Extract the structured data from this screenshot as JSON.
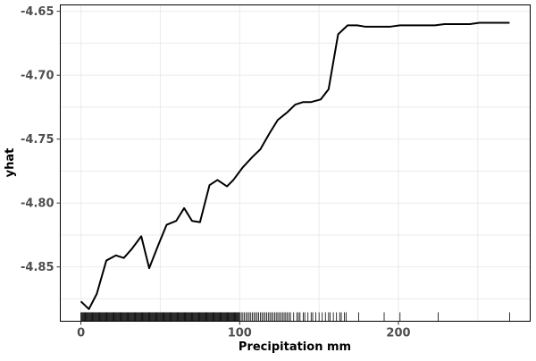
{
  "chart_data": {
    "type": "line",
    "title": "",
    "xlabel": "Precipitation mm",
    "ylabel": "yhat",
    "xlim": [
      -13,
      283
    ],
    "ylim": [
      -4.8925,
      -4.645
    ],
    "xticks": [
      0,
      100,
      200
    ],
    "yticks": [
      -4.65,
      -4.7,
      -4.75,
      -4.8,
      -4.85
    ],
    "xtick_labels": [
      "0",
      "100",
      "200"
    ],
    "ytick_labels": [
      "-4.65",
      "-4.70",
      "-4.75",
      "-4.80",
      "-4.85"
    ],
    "grid": true,
    "legend": "none",
    "series": [
      {
        "x": [
          0,
          5,
          10,
          16,
          22,
          27,
          32,
          38,
          43,
          49,
          54,
          60,
          65,
          70,
          75,
          81,
          86,
          92,
          96,
          102,
          108,
          113,
          119,
          124,
          130,
          135,
          140,
          145,
          151,
          156,
          162,
          168,
          174,
          179,
          184,
          190,
          195,
          201,
          206,
          212,
          218,
          223,
          229,
          234,
          240,
          245,
          251,
          256,
          262,
          270
        ],
        "y": [
          -4.877,
          -4.883,
          -4.871,
          -4.845,
          -4.841,
          -4.843,
          -4.836,
          -4.826,
          -4.851,
          -4.832,
          -4.817,
          -4.814,
          -4.804,
          -4.814,
          -4.815,
          -4.786,
          -4.782,
          -4.787,
          -4.782,
          -4.772,
          -4.764,
          -4.758,
          -4.745,
          -4.735,
          -4.729,
          -4.723,
          -4.721,
          -4.721,
          -4.719,
          -4.711,
          -4.668,
          -4.661,
          -4.661,
          -4.662,
          -4.662,
          -4.662,
          -4.662,
          -4.661,
          -4.661,
          -4.661,
          -4.661,
          -4.661,
          -4.66,
          -4.66,
          -4.66,
          -4.66,
          -4.659,
          -4.659,
          -4.659,
          -4.659
        ]
      }
    ],
    "rug": [
      0,
      0.5,
      1,
      1.5,
      2,
      2.5,
      3,
      3.5,
      4,
      4.5,
      5,
      5.5,
      6,
      6.5,
      7,
      7.5,
      8,
      8.5,
      9,
      9.5,
      10,
      10.5,
      11,
      11.5,
      12,
      12.5,
      13,
      13.5,
      14,
      14.5,
      15,
      15.5,
      16,
      16.5,
      17,
      17.5,
      18,
      18.5,
      19,
      19.5,
      20,
      20.5,
      21,
      21.5,
      22,
      22.5,
      23,
      23.5,
      24,
      24.5,
      25,
      25.5,
      26,
      26.5,
      27,
      27.5,
      28,
      28.5,
      29,
      29.5,
      30,
      30.5,
      31,
      31.5,
      32,
      32.5,
      33,
      33.5,
      34,
      34.5,
      35,
      35.5,
      36,
      36.5,
      37,
      37.5,
      38,
      38.5,
      39,
      39.5,
      40,
      40.5,
      41,
      41.5,
      42,
      42.5,
      43,
      43.5,
      44,
      44.5,
      45,
      45.5,
      46,
      46.5,
      47,
      47.5,
      48,
      48.5,
      49,
      49.5,
      50,
      50.5,
      51,
      51.5,
      52,
      52.5,
      53,
      53.5,
      54,
      54.5,
      55,
      55.5,
      56,
      56.5,
      57,
      57.5,
      58,
      58.5,
      59,
      59.5,
      60,
      60.5,
      61,
      61.5,
      62,
      62.5,
      63,
      63.5,
      64,
      64.5,
      65,
      65.5,
      66,
      66.5,
      67,
      67.5,
      68,
      68.5,
      69,
      69.5,
      70,
      70.5,
      71,
      71.5,
      72,
      72.5,
      73,
      73.5,
      74,
      74.5,
      75,
      75.5,
      76,
      76.5,
      77,
      77.5,
      78,
      78.5,
      79,
      79.5,
      80,
      80.5,
      81,
      81.5,
      82,
      82.5,
      83,
      83.5,
      84,
      84.5,
      85,
      85.5,
      86,
      86.5,
      87,
      87.5,
      88,
      88.5,
      89,
      89.5,
      90,
      90.5,
      91,
      91.5,
      92,
      92.5,
      93,
      93.5,
      94,
      94.5,
      95,
      95.5,
      96,
      96.5,
      97,
      97.5,
      98,
      98.5,
      99,
      99.5,
      100,
      101,
      102,
      103,
      104,
      105,
      106,
      107,
      108,
      109,
      110,
      111,
      112,
      113,
      114,
      115,
      116,
      117,
      118,
      119,
      120,
      121,
      122,
      123,
      124,
      125,
      126,
      127,
      128,
      129,
      130,
      131,
      132,
      134,
      136,
      137,
      138,
      140,
      141,
      143,
      145,
      146,
      148,
      150,
      152,
      154,
      156,
      157,
      159,
      161,
      163,
      164,
      166,
      167,
      175,
      191,
      201,
      225,
      270
    ]
  }
}
